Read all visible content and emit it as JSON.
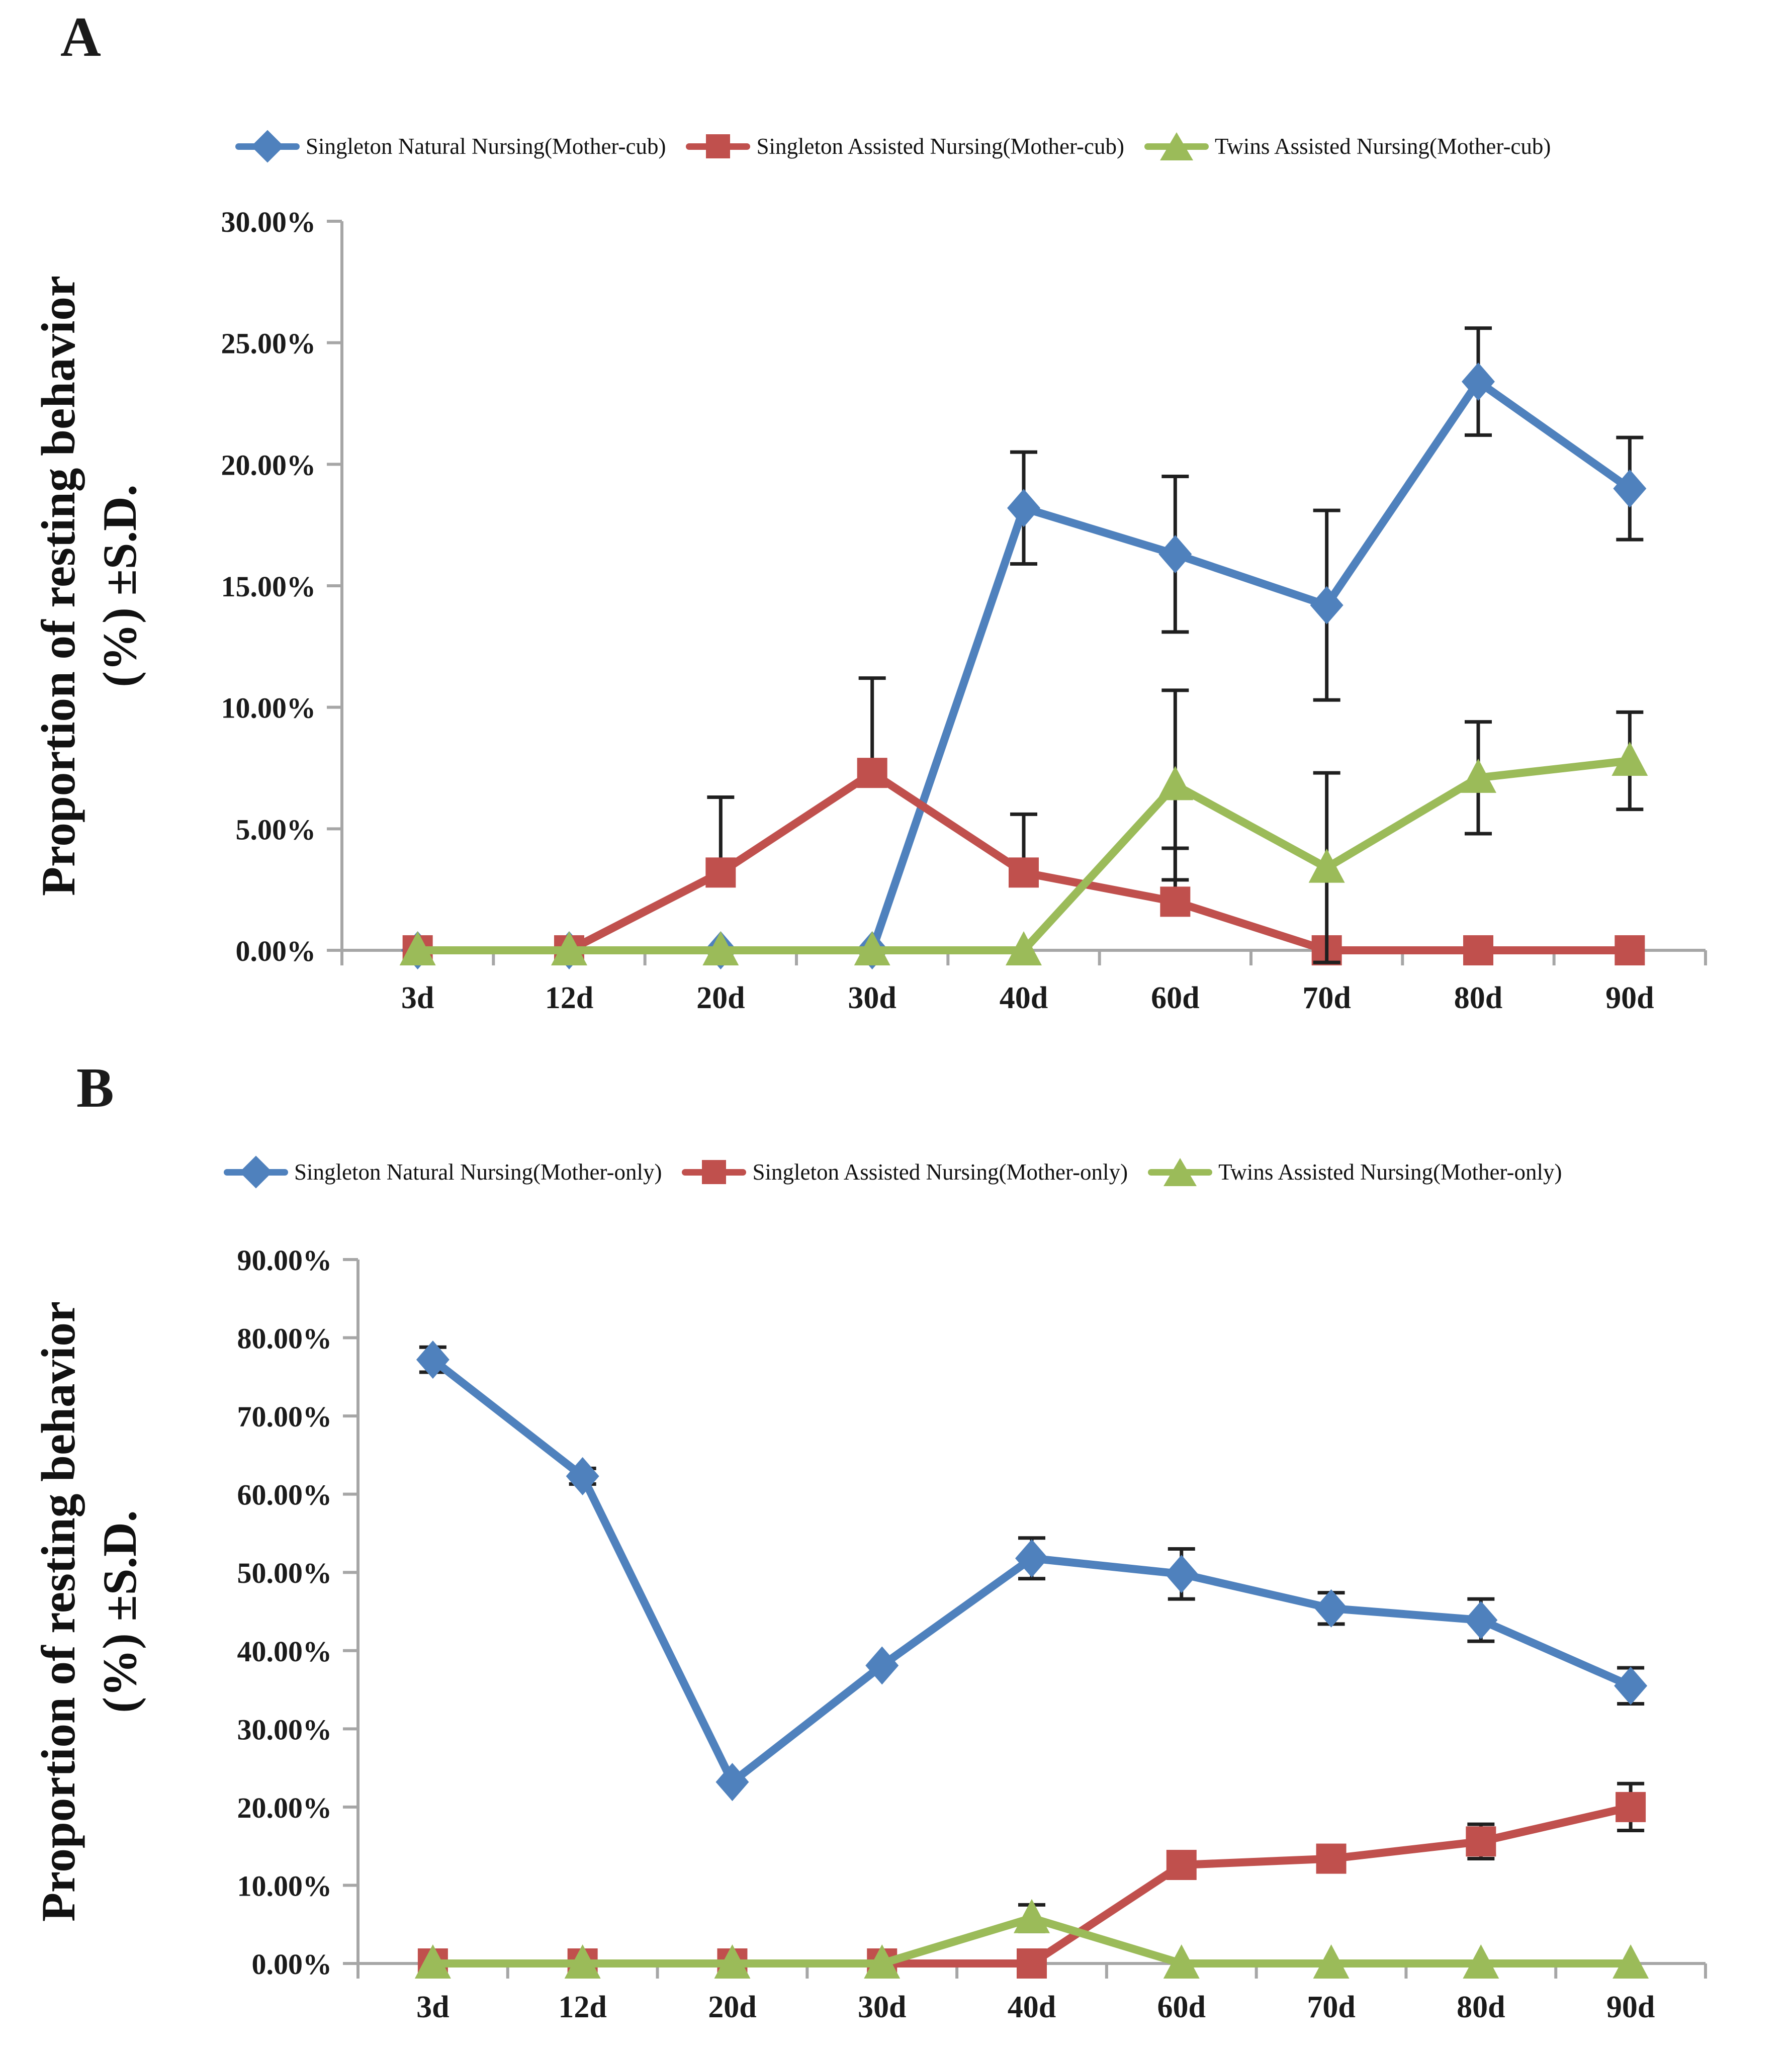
{
  "figure": {
    "background": "#ffffff",
    "axis_color": "#a6a6a6",
    "error_bar_color": "#1f1f1f"
  },
  "chart_data": [
    {
      "panel_label": "A",
      "type": "line",
      "ylabel_line1": "Proportion of resting behavior",
      "ylabel_line2": "(%) ±S.D.",
      "categories": [
        "3d",
        "12d",
        "20d",
        "30d",
        "40d",
        "60d",
        "70d",
        "80d",
        "90d"
      ],
      "ylim": [
        0,
        30
      ],
      "ytick_step": 5,
      "ytick_labels": [
        "0.00%",
        "5.00%",
        "10.00%",
        "15.00%",
        "20.00%",
        "25.00%",
        "30.00%"
      ],
      "grid": false,
      "legend_position": "top",
      "series": [
        {
          "name": "Singleton Natural Nursing(Mother-cub)",
          "color": "#4F81BD",
          "marker": "diamond",
          "error_direction": "both",
          "values": [
            0,
            0,
            0,
            0,
            18.2,
            16.3,
            14.2,
            23.4,
            19.0
          ],
          "errors": [
            0,
            0,
            0,
            0,
            2.3,
            3.2,
            3.9,
            2.2,
            2.1
          ]
        },
        {
          "name": "Singleton Assisted Nursing(Mother-cub)",
          "color": "#C0504D",
          "marker": "square",
          "error_direction": "plus",
          "values": [
            0,
            0,
            3.2,
            7.3,
            3.2,
            2.0,
            0,
            0,
            0
          ],
          "errors": [
            0,
            0,
            3.1,
            3.9,
            2.4,
            2.2,
            0,
            0,
            0
          ]
        },
        {
          "name": "Twins Assisted Nursing(Mother-cub)",
          "color": "#9BBB59",
          "marker": "triangle",
          "error_direction": "both",
          "values": [
            0,
            0,
            0,
            0,
            0,
            6.8,
            3.4,
            7.1,
            7.8
          ],
          "errors": [
            0,
            0,
            0,
            0,
            0,
            3.9,
            3.9,
            2.3,
            2.0
          ]
        }
      ]
    },
    {
      "panel_label": "B",
      "type": "line",
      "ylabel_line1": "Proportion of resting behavior",
      "ylabel_line2": "(%) ±S.D.",
      "categories": [
        "3d",
        "12d",
        "20d",
        "30d",
        "40d",
        "60d",
        "70d",
        "80d",
        "90d"
      ],
      "ylim": [
        0,
        90
      ],
      "ytick_step": 10,
      "ytick_labels": [
        "0.00%",
        "10.00%",
        "20.00%",
        "30.00%",
        "40.00%",
        "50.00%",
        "60.00%",
        "70.00%",
        "80.00%",
        "90.00%"
      ],
      "grid": false,
      "legend_position": "top",
      "series": [
        {
          "name": "Singleton Natural Nursing(Mother-only)",
          "color": "#4F81BD",
          "marker": "diamond",
          "error_direction": "both",
          "values": [
            77.2,
            62.3,
            23.2,
            38.1,
            51.8,
            49.8,
            45.4,
            43.9,
            35.5
          ],
          "errors": [
            1.6,
            1.0,
            0,
            0,
            2.6,
            3.2,
            2.0,
            2.7,
            2.3
          ]
        },
        {
          "name": "Singleton Assisted Nursing(Mother-only)",
          "color": "#C0504D",
          "marker": "square",
          "error_direction": "both",
          "values": [
            0,
            0,
            0,
            0,
            0,
            12.6,
            13.4,
            15.6,
            20.0
          ],
          "errors": [
            0,
            0,
            0,
            0,
            0,
            0,
            1.5,
            2.2,
            3.0
          ]
        },
        {
          "name": "Twins Assisted Nursing(Mother-only)",
          "color": "#9BBB59",
          "marker": "triangle",
          "error_direction": "both",
          "values": [
            0,
            0,
            0,
            0,
            5.8,
            0,
            0,
            0,
            0
          ],
          "errors": [
            0,
            0,
            0,
            0,
            1.7,
            0,
            0,
            0,
            0
          ]
        }
      ]
    }
  ]
}
